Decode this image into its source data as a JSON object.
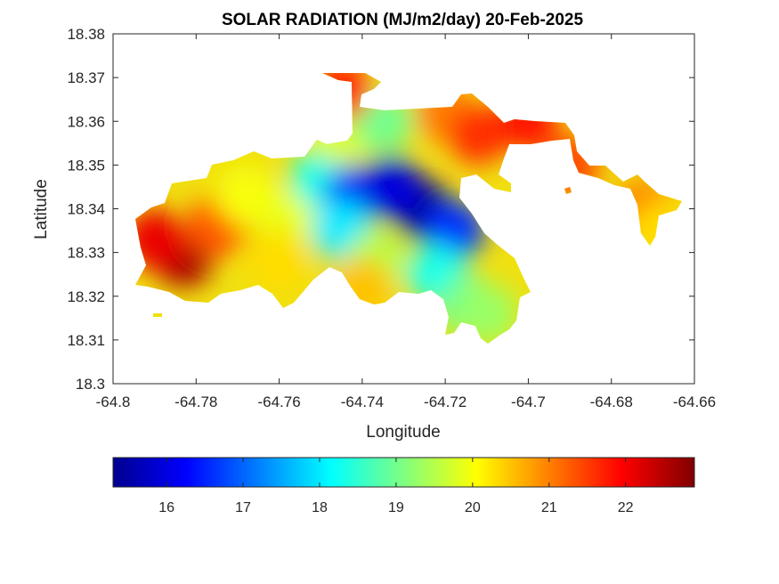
{
  "chart_data": {
    "type": "heatmap",
    "title": "SOLAR RADIATION (MJ/m2/day) 20-Feb-2025",
    "xlabel": "Longitude",
    "ylabel": "Latitude",
    "xlim": [
      -64.8,
      -64.66
    ],
    "ylim": [
      18.3,
      18.38
    ],
    "xticks": [
      -64.8,
      -64.78,
      -64.76,
      -64.74,
      -64.72,
      -64.7,
      -64.68,
      -64.66
    ],
    "xtick_labels": [
      "-64.8",
      "-64.78",
      "-64.76",
      "-64.74",
      "-64.72",
      "-64.7",
      "-64.68",
      "-64.66"
    ],
    "yticks": [
      18.3,
      18.31,
      18.32,
      18.33,
      18.34,
      18.35,
      18.36,
      18.37,
      18.38
    ],
    "ytick_labels": [
      "18.3",
      "18.31",
      "18.32",
      "18.33",
      "18.34",
      "18.35",
      "18.36",
      "18.37",
      "18.38"
    ],
    "colormap": "jet",
    "colorbar": {
      "range": [
        15.3,
        22.9
      ],
      "ticks": [
        16,
        17,
        18,
        19,
        20,
        21,
        22
      ],
      "tick_labels": [
        "16",
        "17",
        "18",
        "19",
        "20",
        "21",
        "22"
      ],
      "position": "bottom"
    },
    "regions": [
      {
        "lon": -64.783,
        "lat": 18.329,
        "value": 22.6
      },
      {
        "lon": -64.79,
        "lat": 18.333,
        "value": 22.1
      },
      {
        "lon": -64.775,
        "lat": 18.336,
        "value": 21.3
      },
      {
        "lon": -64.768,
        "lat": 18.343,
        "value": 20.0
      },
      {
        "lon": -64.757,
        "lat": 18.338,
        "value": 19.9
      },
      {
        "lon": -64.76,
        "lat": 18.328,
        "value": 20.3
      },
      {
        "lon": -64.75,
        "lat": 18.347,
        "value": 18.3
      },
      {
        "lon": -64.742,
        "lat": 18.343,
        "value": 16.6
      },
      {
        "lon": -64.726,
        "lat": 18.34,
        "value": 15.4
      },
      {
        "lon": -64.733,
        "lat": 18.345,
        "value": 16.0
      },
      {
        "lon": -64.718,
        "lat": 18.335,
        "value": 16.6
      },
      {
        "lon": -64.745,
        "lat": 18.335,
        "value": 18.0
      },
      {
        "lon": -64.737,
        "lat": 18.328,
        "value": 19.5
      },
      {
        "lon": -64.74,
        "lat": 18.322,
        "value": 20.5
      },
      {
        "lon": -64.722,
        "lat": 18.325,
        "value": 18.3
      },
      {
        "lon": -64.715,
        "lat": 18.318,
        "value": 19.0
      },
      {
        "lon": -64.71,
        "lat": 18.316,
        "value": 19.3
      },
      {
        "lon": -64.745,
        "lat": 18.357,
        "value": 19.8
      },
      {
        "lon": -64.735,
        "lat": 18.36,
        "value": 19.0
      },
      {
        "lon": -64.745,
        "lat": 18.367,
        "value": 21.7
      },
      {
        "lon": -64.72,
        "lat": 18.362,
        "value": 21.0
      },
      {
        "lon": -64.712,
        "lat": 18.357,
        "value": 21.6
      },
      {
        "lon": -64.7,
        "lat": 18.36,
        "value": 21.8
      },
      {
        "lon": -64.69,
        "lat": 18.35,
        "value": 21.4
      },
      {
        "lon": -64.672,
        "lat": 18.34,
        "value": 21.0
      },
      {
        "lon": -64.668,
        "lat": 18.335,
        "value": 20.3
      }
    ]
  }
}
